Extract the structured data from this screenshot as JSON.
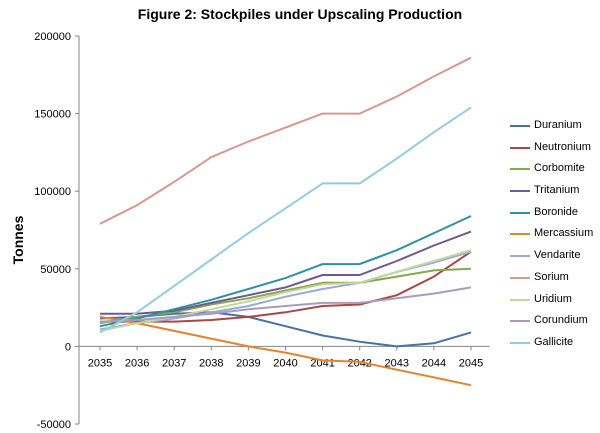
{
  "chart_data": {
    "type": "line",
    "title": "Figure 2: Stockpiles under Upscaling Production",
    "xlabel": "",
    "ylabel": "Tonnes",
    "ylim": [
      -50000,
      200000
    ],
    "yticks": [
      -50000,
      0,
      50000,
      100000,
      150000,
      200000
    ],
    "grid": false,
    "legend_position": "right",
    "categories": [
      "2035",
      "2036",
      "2037",
      "2038",
      "2039",
      "2040",
      "2041",
      "2042",
      "2043",
      "2044",
      "2045"
    ],
    "series": [
      {
        "name": "Duranium",
        "color": "#4572A7",
        "values": [
          18000,
          19000,
          21000,
          22000,
          19000,
          13000,
          7000,
          3000,
          0,
          2000,
          9000
        ]
      },
      {
        "name": "Neutronium",
        "color": "#AA4643",
        "values": [
          16000,
          16000,
          16000,
          17000,
          19000,
          22000,
          26000,
          27000,
          33000,
          45000,
          61000
        ]
      },
      {
        "name": "Corbomite",
        "color": "#89A54E",
        "values": [
          15000,
          19000,
          22000,
          27000,
          31000,
          36000,
          41000,
          41000,
          45000,
          49000,
          50000
        ]
      },
      {
        "name": "Tritanium",
        "color": "#71588F",
        "values": [
          21000,
          21000,
          23000,
          28000,
          33000,
          38000,
          46000,
          46000,
          55000,
          65000,
          74000
        ]
      },
      {
        "name": "Boronide",
        "color": "#2F8EA8",
        "values": [
          13000,
          18000,
          24000,
          30000,
          37000,
          44000,
          53000,
          53000,
          62000,
          73000,
          84000
        ]
      },
      {
        "name": "Mercassium",
        "color": "#E8822D",
        "values": [
          19000,
          15000,
          10000,
          5000,
          0,
          -4000,
          -9000,
          -10000,
          -15000,
          -20000,
          -25000
        ]
      },
      {
        "name": "Vendarite",
        "color": "#9BA8D8",
        "values": [
          11000,
          15000,
          18000,
          22000,
          26000,
          32000,
          37000,
          41000,
          48000,
          54000,
          61000
        ]
      },
      {
        "name": "Sorium",
        "color": "#D99694",
        "values": [
          79000,
          91000,
          106000,
          122000,
          132000,
          141000,
          150000,
          150000,
          161000,
          174000,
          186000
        ]
      },
      {
        "name": "Uridium",
        "color": "#C3D69B",
        "values": [
          10000,
          15000,
          19000,
          24000,
          29000,
          35000,
          40000,
          41000,
          48000,
          55000,
          62000
        ]
      },
      {
        "name": "Corundium",
        "color": "#A99BBD",
        "values": [
          16000,
          17000,
          19000,
          21000,
          24000,
          26000,
          28000,
          28000,
          31000,
          34000,
          38000
        ]
      },
      {
        "name": "Gallicite",
        "color": "#93CDDD",
        "values": [
          9000,
          22000,
          39000,
          56000,
          73000,
          89000,
          105000,
          105000,
          121000,
          138000,
          154000
        ]
      }
    ]
  }
}
